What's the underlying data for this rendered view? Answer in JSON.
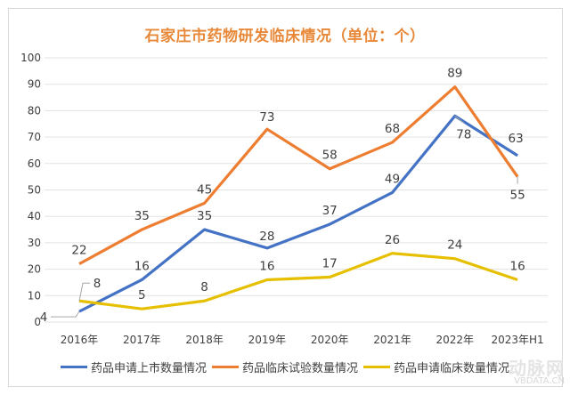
{
  "chart_data": {
    "type": "line",
    "title": "石家庄市药物研发临床情况（单位：个）",
    "xlabel": "",
    "ylabel": "",
    "categories": [
      "2016年",
      "2017年",
      "2018年",
      "2019年",
      "2020年",
      "2021年",
      "2022年",
      "2023年H1"
    ],
    "ylim": [
      0,
      100
    ],
    "yticks": [
      0,
      10,
      20,
      30,
      40,
      50,
      60,
      70,
      80,
      90,
      100
    ],
    "grid": true,
    "legend_position": "bottom",
    "series": [
      {
        "name": "药品申请上市数量情况",
        "color": "#4472c4",
        "values": [
          4,
          16,
          35,
          28,
          37,
          49,
          78,
          63
        ]
      },
      {
        "name": "药品临床试验数量情况",
        "color": "#ed7d31",
        "values": [
          22,
          35,
          45,
          73,
          58,
          68,
          89,
          55
        ]
      },
      {
        "name": "药品申请临床数量情况",
        "color": "#e6c000",
        "values": [
          8,
          5,
          8,
          16,
          17,
          26,
          24,
          16
        ]
      }
    ]
  },
  "watermark": {
    "logo": "动脉网",
    "text": "VBDATA.CN"
  }
}
